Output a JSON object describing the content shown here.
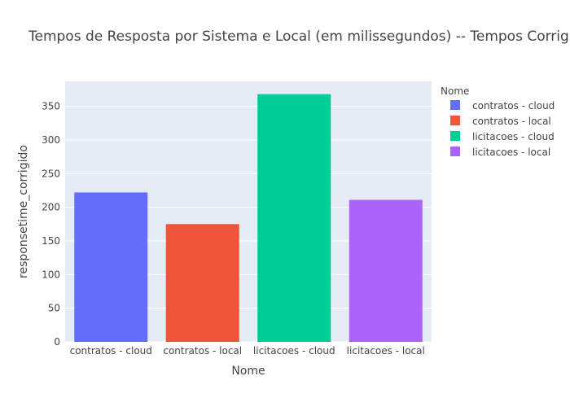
{
  "chart_data": {
    "type": "bar",
    "title": "Tempos de Resposta por Sistema e Local (em milissegundos) -- Tempos Corrigidos",
    "xlabel": "Nome",
    "ylabel": "responsetime_corrigido",
    "categories": [
      "contratos - cloud",
      "contratos - local",
      "licitacoes - cloud",
      "licitacoes - local"
    ],
    "values": [
      222,
      175,
      368,
      211
    ],
    "ylim": [
      0,
      387
    ],
    "yticks": [
      0,
      50,
      100,
      150,
      200,
      250,
      300,
      350
    ],
    "grid": true,
    "legend": {
      "title": "Nome",
      "position": "right",
      "entries": [
        "contratos - cloud",
        "contratos - local",
        "licitacoes - cloud",
        "licitacoes - local"
      ]
    },
    "colors": [
      "#636efa",
      "#ef553b",
      "#00cc96",
      "#ab63fa"
    ],
    "plot_background": "#e5ecf6"
  }
}
